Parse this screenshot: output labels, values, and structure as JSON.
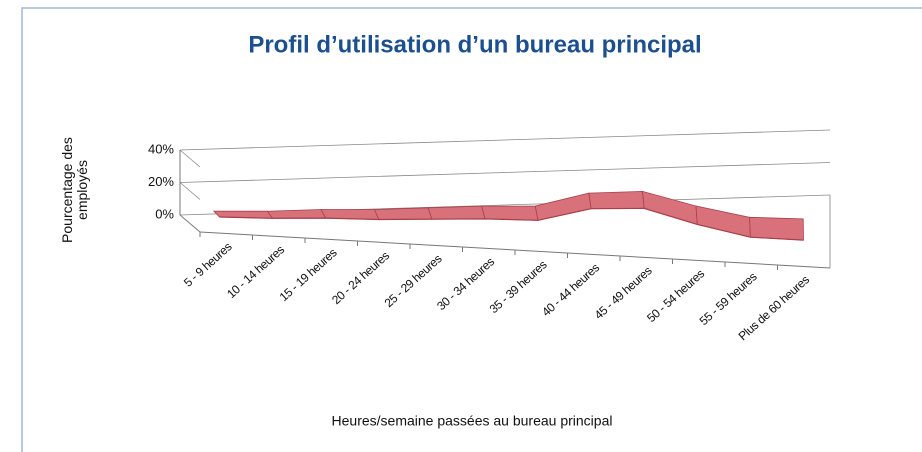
{
  "chart_data": {
    "type": "line3d",
    "title": "Profil d’utilisation d’un bureau principal",
    "y_label": "Pourcentage des employés",
    "x_label": "Heures/semaine passées au bureau principal",
    "categories": [
      "5 - 9 heures",
      "10 - 14 heures",
      "15 - 19 heures",
      "20 - 24 heures",
      "25 - 29 heures",
      "30 - 34 heures",
      "35 - 39 heures",
      "40 - 44 heures",
      "45 - 49 heures",
      "50 - 54 heures",
      "55 - 59 heures",
      "Plus de 60 heures"
    ],
    "values": [
      6,
      6,
      7,
      7,
      8,
      9,
      9,
      17,
      18,
      9,
      2,
      1
    ],
    "color": "#d9717b",
    "ylim": [
      0,
      40
    ],
    "yticks": [
      {
        "value": 0,
        "label": "0%"
      },
      {
        "value": 20,
        "label": "20%"
      },
      {
        "value": 40,
        "label": "40%"
      }
    ],
    "grid": true
  }
}
